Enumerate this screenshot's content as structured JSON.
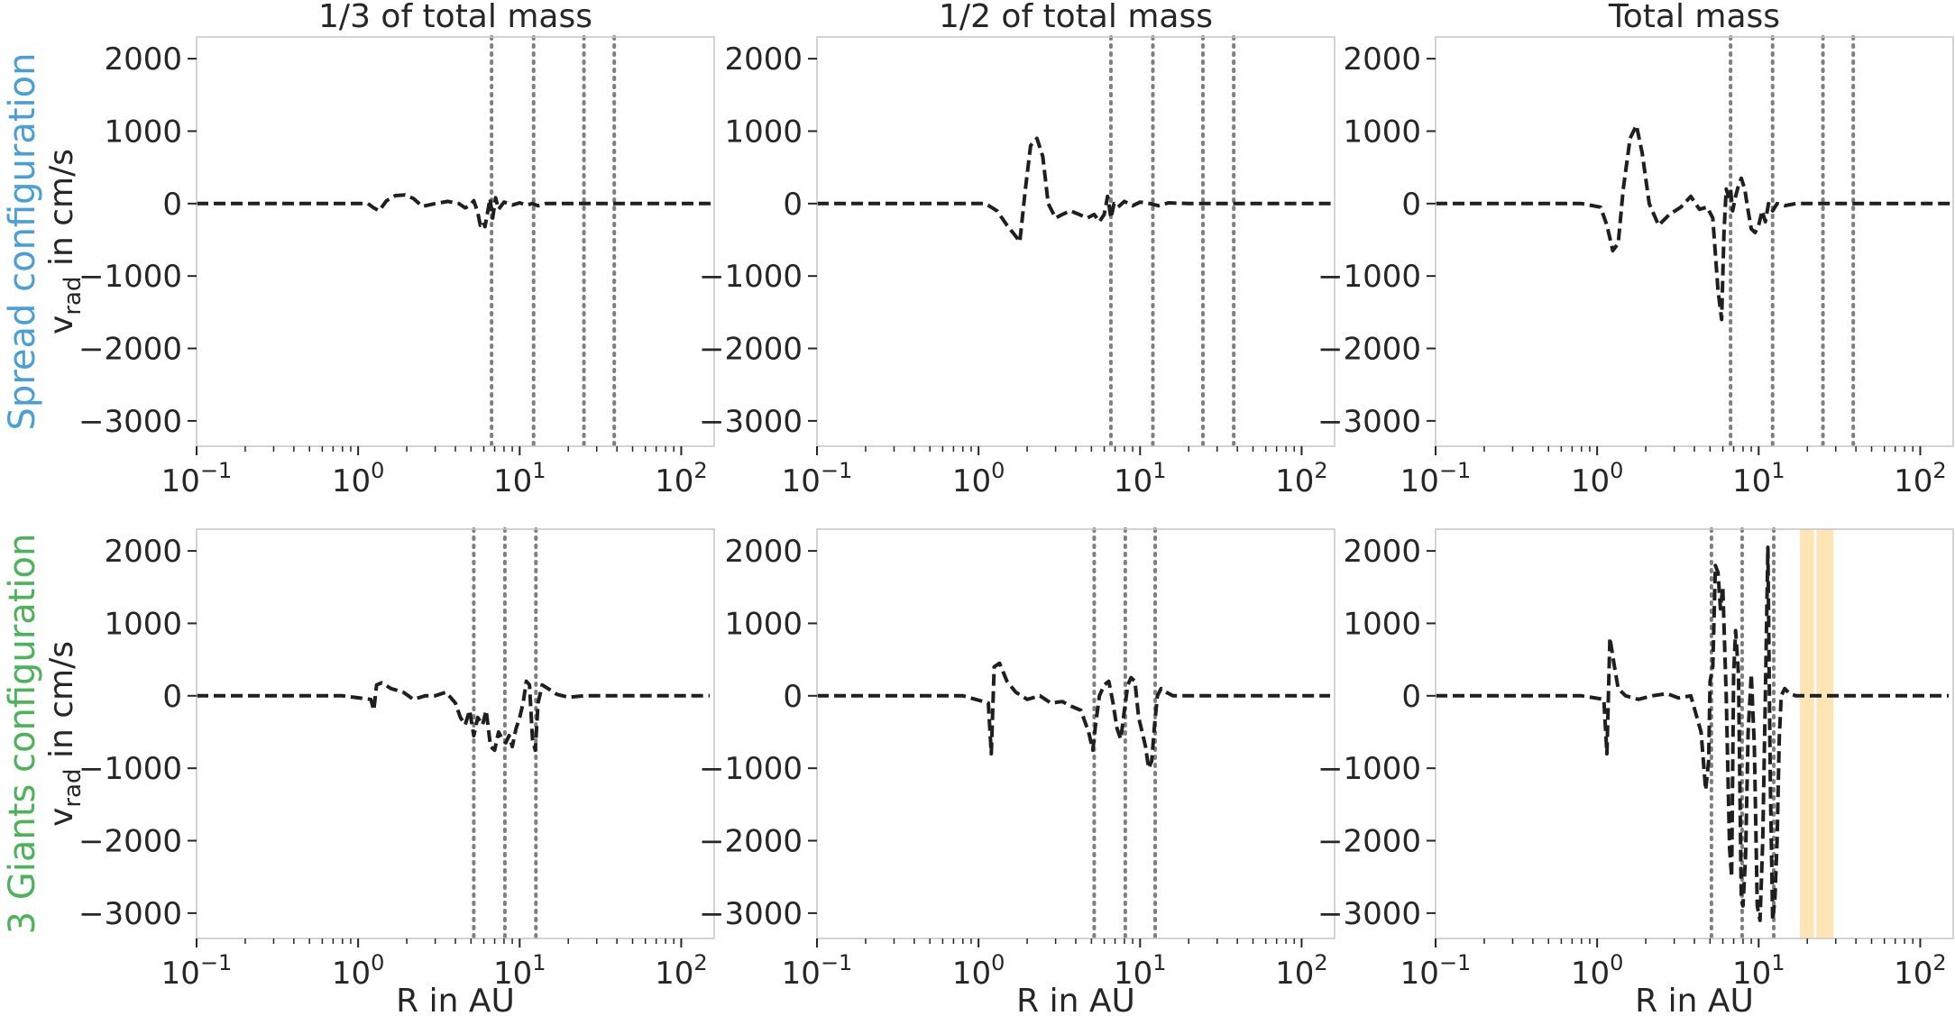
{
  "figure": {
    "col_titles": [
      "1/3 of total mass",
      "1/2 of total mass",
      "Total mass"
    ],
    "row_labels": [
      {
        "text": "Spread configuration",
        "color": "#4a9fd4"
      },
      {
        "text": "3 Giants configuration",
        "color": "#4cb35a"
      }
    ],
    "ylabel_main": "v",
    "ylabel_sub": "rad",
    "ylabel_tail": " in cm/s",
    "xlabel": "R in AU",
    "colors": {
      "line": "#1f1f1f",
      "vline": "#7f7f7f",
      "span": "#ffe4b5",
      "axis": "#c8c8c8",
      "text": "#262626"
    }
  },
  "chart_data": [
    {
      "type": "line",
      "row": 0,
      "col": 0,
      "xscale": "log",
      "xlim": [
        0.1,
        160
      ],
      "ylim": [
        -3350,
        2300
      ],
      "yticks": [
        2000,
        1000,
        0,
        -1000,
        -2000,
        -3000
      ],
      "ytick_labels": [
        "2000",
        "1000",
        "0",
        "−1000",
        "−2000",
        "−3000"
      ],
      "xticks": [
        0.1,
        1,
        10,
        100
      ],
      "xtick_labels": [
        {
          "base": "10",
          "exp": "−1"
        },
        {
          "base": "10",
          "exp": "0"
        },
        {
          "base": "10",
          "exp": "1"
        },
        {
          "base": "10",
          "exp": "2"
        }
      ],
      "vlines": [
        6.7,
        12.2,
        25,
        38.5
      ],
      "spans": [],
      "x": [
        0.1,
        0.3,
        0.8,
        1.15,
        1.25,
        1.35,
        1.5,
        1.7,
        1.95,
        2.2,
        2.5,
        3.0,
        3.6,
        4.2,
        4.6,
        4.9,
        5.2,
        5.5,
        5.7,
        5.95,
        6.1,
        6.3,
        6.55,
        6.8,
        7.1,
        7.4,
        8.0,
        9.0,
        10.0,
        11.0,
        12.0,
        13.0,
        14.5,
        17.0,
        22.0,
        30.0,
        50.0,
        100.0,
        160.0
      ],
      "y": [
        0,
        0,
        0,
        0,
        -60,
        -100,
        40,
        110,
        120,
        70,
        -40,
        0,
        30,
        0,
        -60,
        -30,
        40,
        -120,
        -300,
        -250,
        -320,
        -150,
        70,
        -200,
        80,
        -80,
        20,
        -20,
        10,
        -20,
        0,
        -30,
        0,
        0,
        0,
        0,
        0,
        0,
        0
      ]
    },
    {
      "type": "line",
      "row": 0,
      "col": 1,
      "xscale": "log",
      "xlim": [
        0.1,
        160
      ],
      "ylim": [
        -3350,
        2300
      ],
      "yticks": [
        2000,
        1000,
        0,
        -1000,
        -2000,
        -3000
      ],
      "ytick_labels": [
        "2000",
        "1000",
        "0",
        "−1000",
        "−2000",
        "−3000"
      ],
      "xticks": [
        0.1,
        1,
        10,
        100
      ],
      "xtick_labels": [
        {
          "base": "10",
          "exp": "−1"
        },
        {
          "base": "10",
          "exp": "0"
        },
        {
          "base": "10",
          "exp": "1"
        },
        {
          "base": "10",
          "exp": "2"
        }
      ],
      "vlines": [
        6.6,
        12,
        24.5,
        38
      ],
      "spans": [],
      "x": [
        0.1,
        0.3,
        0.8,
        1.1,
        1.3,
        1.5,
        1.7,
        1.8,
        1.95,
        2.1,
        2.3,
        2.5,
        2.7,
        3.0,
        3.3,
        3.7,
        4.2,
        4.7,
        5.2,
        5.6,
        6.0,
        6.3,
        6.6,
        6.9,
        7.3,
        8.0,
        9.0,
        10.0,
        11.5,
        13.0,
        15.0,
        20.0,
        30.0,
        50.0,
        100.0,
        160.0
      ],
      "y": [
        0,
        0,
        0,
        0,
        -100,
        -300,
        -450,
        -530,
        200,
        800,
        900,
        650,
        0,
        -200,
        -150,
        -100,
        -150,
        -200,
        -150,
        -250,
        -150,
        100,
        -200,
        0,
        -50,
        30,
        -30,
        20,
        0,
        -30,
        10,
        0,
        0,
        0,
        0,
        0
      ]
    },
    {
      "type": "line",
      "row": 0,
      "col": 2,
      "xscale": "log",
      "xlim": [
        0.1,
        160
      ],
      "ylim": [
        -3350,
        2300
      ],
      "yticks": [
        2000,
        1000,
        0,
        -1000,
        -2000,
        -3000
      ],
      "ytick_labels": [
        "2000",
        "1000",
        "0",
        "−1000",
        "−2000",
        "−3000"
      ],
      "xticks": [
        0.1,
        1,
        10,
        100
      ],
      "xtick_labels": [
        {
          "base": "10",
          "exp": "−1"
        },
        {
          "base": "10",
          "exp": "0"
        },
        {
          "base": "10",
          "exp": "1"
        },
        {
          "base": "10",
          "exp": "2"
        }
      ],
      "vlines": [
        6.7,
        12.2,
        25,
        38.5
      ],
      "spans": [],
      "x": [
        0.1,
        0.3,
        0.8,
        1.05,
        1.15,
        1.25,
        1.35,
        1.45,
        1.6,
        1.75,
        1.9,
        2.1,
        2.4,
        2.8,
        3.3,
        3.8,
        4.3,
        4.8,
        5.2,
        5.6,
        5.9,
        6.1,
        6.3,
        6.5,
        6.7,
        6.9,
        7.2,
        7.5,
        7.8,
        8.2,
        8.6,
        9.0,
        9.5,
        10.0,
        10.5,
        11.0,
        11.5,
        12.2,
        13.0,
        14.5,
        17.0,
        22.0,
        30.0,
        50.0,
        100.0,
        160.0
      ],
      "y": [
        0,
        0,
        0,
        -50,
        -300,
        -650,
        -550,
        200,
        900,
        1080,
        700,
        0,
        -300,
        -150,
        -50,
        100,
        -80,
        -50,
        -200,
        -1200,
        -1600,
        -400,
        200,
        100,
        200,
        -100,
        100,
        250,
        350,
        200,
        -100,
        -350,
        -400,
        -300,
        -100,
        -250,
        0,
        -100,
        0,
        -30,
        0,
        0,
        0,
        0,
        0,
        0
      ]
    },
    {
      "type": "line",
      "row": 1,
      "col": 0,
      "xscale": "log",
      "xlim": [
        0.1,
        160
      ],
      "ylim": [
        -3350,
        2300
      ],
      "yticks": [
        2000,
        1000,
        0,
        -1000,
        -2000,
        -3000
      ],
      "ytick_labels": [
        "2000",
        "1000",
        "0",
        "−1000",
        "−2000",
        "−3000"
      ],
      "xticks": [
        0.1,
        1,
        10,
        100
      ],
      "xtick_labels": [
        {
          "base": "10",
          "exp": "−1"
        },
        {
          "base": "10",
          "exp": "0"
        },
        {
          "base": "10",
          "exp": "1"
        },
        {
          "base": "10",
          "exp": "2"
        }
      ],
      "vlines": [
        5.2,
        8.1,
        12.6
      ],
      "spans": [],
      "x": [
        0.1,
        0.3,
        0.8,
        1.2,
        1.25,
        1.3,
        1.4,
        1.6,
        1.9,
        2.2,
        2.6,
        3.0,
        3.5,
        4.0,
        4.3,
        4.6,
        4.9,
        5.2,
        5.5,
        5.9,
        6.2,
        6.6,
        7.0,
        7.4,
        7.8,
        8.2,
        8.6,
        9.0,
        9.5,
        10.0,
        10.5,
        11.0,
        11.5,
        12.0,
        12.5,
        13.0,
        13.8,
        15.0,
        17.0,
        20.0,
        25.0,
        35.0,
        50.0,
        80.0,
        150.0
      ],
      "y": [
        0,
        0,
        0,
        -50,
        -200,
        150,
        180,
        100,
        50,
        -50,
        0,
        0,
        50,
        -100,
        -300,
        -400,
        -200,
        -550,
        -300,
        -400,
        -200,
        -700,
        -750,
        -500,
        -600,
        -650,
        -550,
        -700,
        -450,
        -300,
        -100,
        200,
        150,
        -600,
        -750,
        -100,
        150,
        100,
        20,
        -20,
        0,
        0,
        0,
        0,
        0
      ]
    },
    {
      "type": "line",
      "row": 1,
      "col": 1,
      "xscale": "log",
      "xlim": [
        0.1,
        160
      ],
      "ylim": [
        -3350,
        2300
      ],
      "yticks": [
        2000,
        1000,
        0,
        -1000,
        -2000,
        -3000
      ],
      "ytick_labels": [
        "2000",
        "1000",
        "0",
        "−1000",
        "−2000",
        "−3000"
      ],
      "xticks": [
        0.1,
        1,
        10,
        100
      ],
      "xtick_labels": [
        {
          "base": "10",
          "exp": "−1"
        },
        {
          "base": "10",
          "exp": "0"
        },
        {
          "base": "10",
          "exp": "1"
        },
        {
          "base": "10",
          "exp": "2"
        }
      ],
      "vlines": [
        5.2,
        8.1,
        12.4
      ],
      "spans": [],
      "x": [
        0.1,
        0.3,
        0.8,
        1.15,
        1.2,
        1.25,
        1.35,
        1.5,
        1.7,
        2.0,
        2.4,
        2.8,
        3.3,
        3.8,
        4.3,
        4.8,
        5.1,
        5.3,
        5.6,
        6.0,
        6.4,
        6.8,
        7.2,
        7.6,
        8.0,
        8.4,
        8.8,
        9.3,
        9.8,
        10.3,
        10.8,
        11.3,
        11.8,
        12.3,
        12.8,
        13.5,
        14.5,
        16.0,
        19.0,
        25.0,
        35.0,
        50.0,
        80.0,
        150.0
      ],
      "y": [
        0,
        0,
        0,
        -100,
        -800,
        400,
        450,
        200,
        50,
        -50,
        0,
        -100,
        -80,
        -150,
        -200,
        -500,
        -750,
        -400,
        0,
        150,
        200,
        -100,
        -450,
        -600,
        -200,
        150,
        250,
        200,
        -300,
        -500,
        -700,
        -1000,
        -900,
        -400,
        0,
        100,
        50,
        0,
        0,
        0,
        0,
        0,
        0,
        0
      ]
    },
    {
      "type": "line",
      "row": 1,
      "col": 2,
      "xscale": "log",
      "xlim": [
        0.1,
        160
      ],
      "ylim": [
        -3350,
        2300
      ],
      "yticks": [
        2000,
        1000,
        0,
        -1000,
        -2000,
        -3000
      ],
      "ytick_labels": [
        "2000",
        "1000",
        "0",
        "−1000",
        "−2000",
        "−3000"
      ],
      "xticks": [
        0.1,
        1,
        10,
        100
      ],
      "xtick_labels": [
        {
          "base": "10",
          "exp": "−1"
        },
        {
          "base": "10",
          "exp": "0"
        },
        {
          "base": "10",
          "exp": "1"
        },
        {
          "base": "10",
          "exp": "2"
        }
      ],
      "vlines": [
        5.1,
        7.9,
        12.4
      ],
      "spans": [
        [
          18,
          22
        ],
        [
          22.8,
          29
        ]
      ],
      "x": [
        0.1,
        0.3,
        0.8,
        1.1,
        1.15,
        1.2,
        1.28,
        1.35,
        1.5,
        1.8,
        2.2,
        2.7,
        3.2,
        3.8,
        4.4,
        4.7,
        4.9,
        5.0,
        5.2,
        5.4,
        5.6,
        5.8,
        6.0,
        6.3,
        6.6,
        6.8,
        7.0,
        7.2,
        7.5,
        7.8,
        8.0,
        8.3,
        8.6,
        9.0,
        9.4,
        9.8,
        10.2,
        10.6,
        11.0,
        11.4,
        11.8,
        12.2,
        12.6,
        13.0,
        13.4,
        13.8,
        14.5,
        15.5,
        17.0,
        20.0,
        25.0,
        35.0,
        50.0,
        80.0,
        150.0
      ],
      "y": [
        0,
        0,
        0,
        -50,
        -800,
        800,
        400,
        100,
        0,
        -50,
        0,
        30,
        -30,
        0,
        -500,
        -1300,
        -900,
        200,
        400,
        1800,
        1700,
        1200,
        1500,
        0,
        -2100,
        -2500,
        300,
        900,
        300,
        -2800,
        -2900,
        -2200,
        -500,
        300,
        -700,
        -2900,
        -3100,
        -2000,
        0,
        2050,
        -1200,
        -3100,
        -2800,
        -2000,
        -600,
        0,
        100,
        30,
        0,
        0,
        0,
        0,
        0,
        0,
        0
      ]
    }
  ]
}
